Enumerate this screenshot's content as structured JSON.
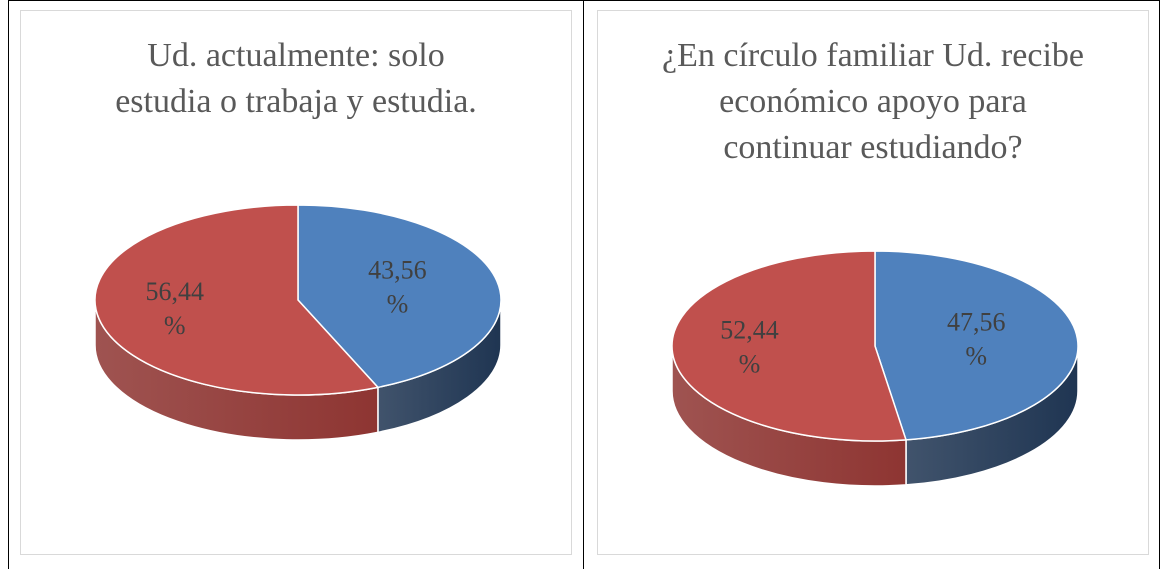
{
  "chart_data": [
    {
      "type": "pie",
      "title": "Ud. actualmente: solo estudia o trabaja y estudia.",
      "values": [
        43.56,
        56.44
      ],
      "value_labels": [
        "43,56 %",
        "56,44 %"
      ],
      "colors": [
        "#4f81bd",
        "#c0504d"
      ],
      "wall_colors": [
        "#1f3552",
        "#8e3532"
      ]
    },
    {
      "type": "pie",
      "title": "¿En círculo familiar Ud. recibe económico apoyo para continuar estudiando?",
      "values": [
        47.56,
        52.44
      ],
      "value_labels": [
        "47,56 %",
        "52,44 %"
      ],
      "colors": [
        "#4f81bd",
        "#c0504d"
      ],
      "wall_colors": [
        "#1f3552",
        "#8e3532"
      ]
    }
  ]
}
